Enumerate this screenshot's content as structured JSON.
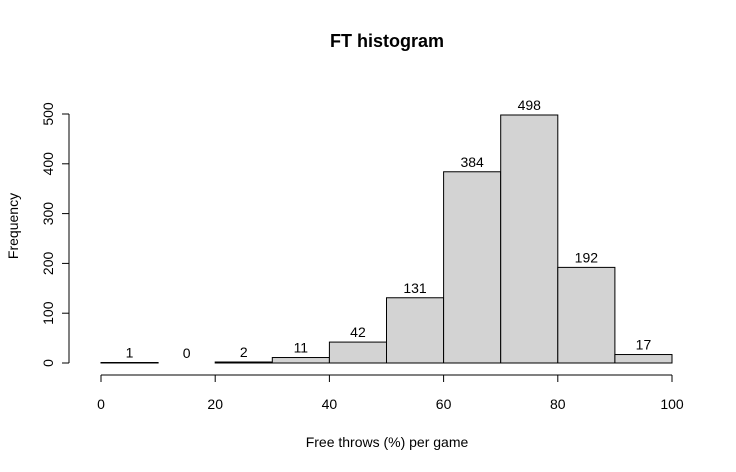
{
  "chart_data": {
    "type": "bar",
    "title": "FT histogram",
    "xlabel": "Free throws (%) per game",
    "ylabel": "Frequency",
    "bins": [
      {
        "x0": 0,
        "x1": 10,
        "value": 1
      },
      {
        "x0": 10,
        "x1": 20,
        "value": 0
      },
      {
        "x0": 20,
        "x1": 30,
        "value": 2
      },
      {
        "x0": 30,
        "x1": 40,
        "value": 11
      },
      {
        "x0": 40,
        "x1": 50,
        "value": 42
      },
      {
        "x0": 50,
        "x1": 60,
        "value": 131
      },
      {
        "x0": 60,
        "x1": 70,
        "value": 384
      },
      {
        "x0": 70,
        "x1": 80,
        "value": 498
      },
      {
        "x0": 80,
        "x1": 90,
        "value": 192
      },
      {
        "x0": 90,
        "x1": 100,
        "value": 17
      }
    ],
    "xlim": [
      0,
      100
    ],
    "ylim": [
      0,
      500
    ],
    "xticks": [
      0,
      20,
      40,
      60,
      80,
      100
    ],
    "yticks": [
      0,
      100,
      200,
      300,
      400,
      500
    ],
    "bar_color": "#d3d3d3",
    "bar_border": "#000000",
    "grid": false,
    "legend": "none"
  }
}
